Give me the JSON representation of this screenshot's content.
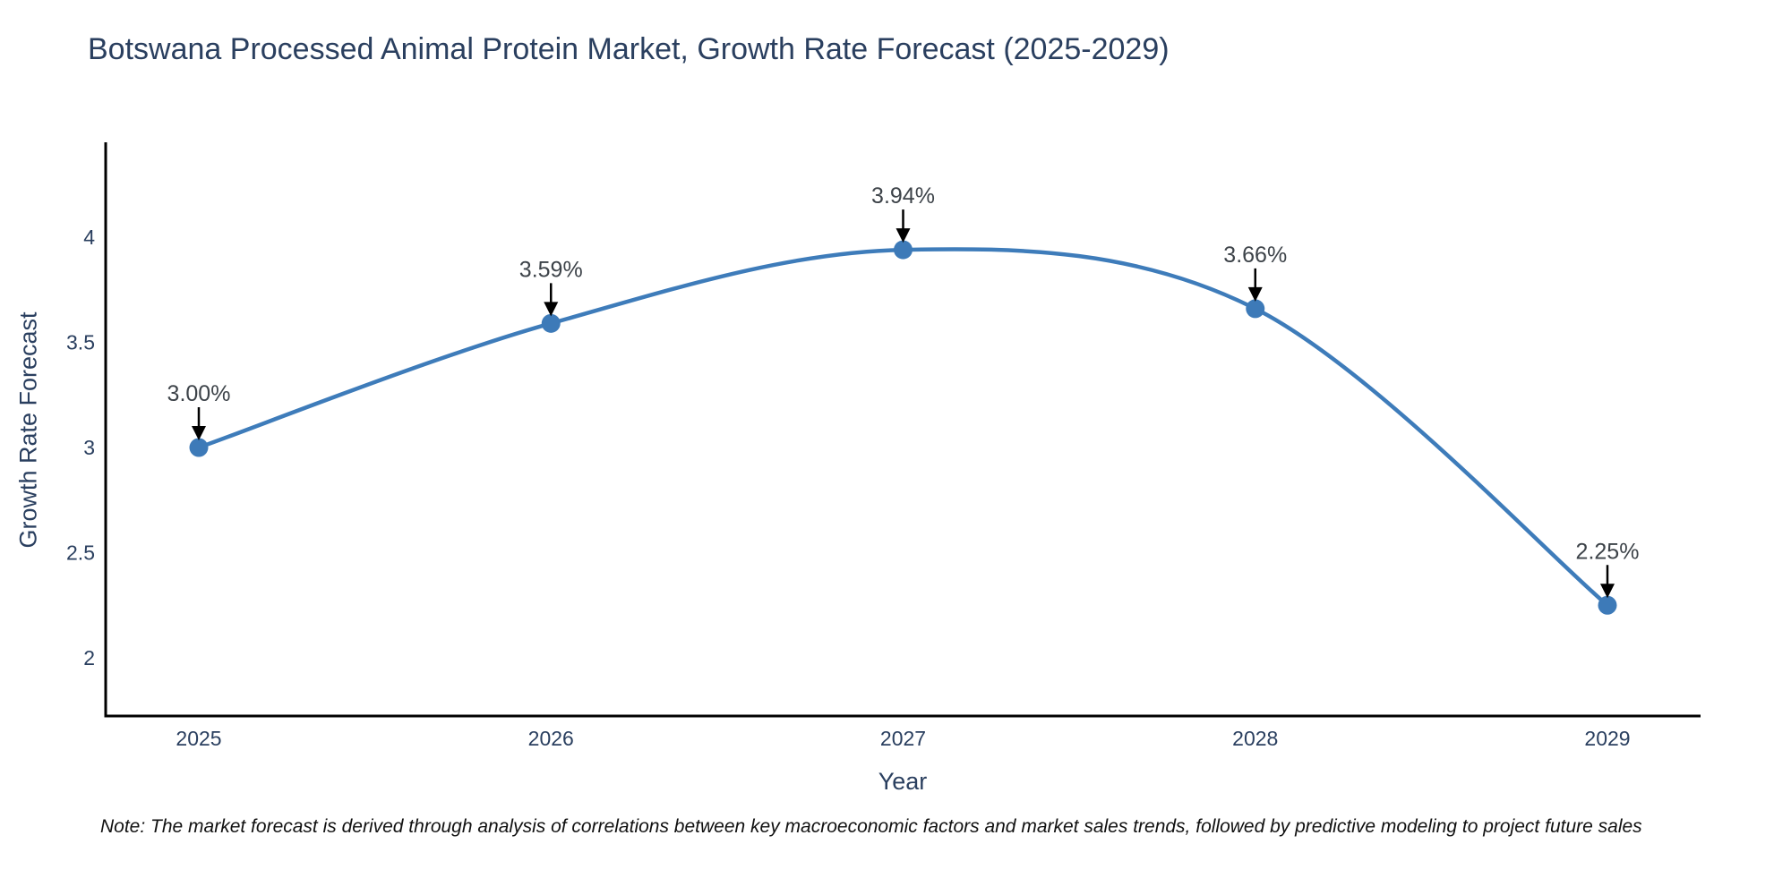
{
  "title": "Botswana Processed Animal Protein Market, Growth Rate Forecast (2025-2029)",
  "note": "Note: The market forecast is derived through analysis of correlations between key macroeconomic factors and market sales trends, followed by predictive modeling to project future sales",
  "chart_data": {
    "type": "line",
    "title": "Botswana Processed Animal Protein Market, Growth Rate Forecast (2025-2029)",
    "xlabel": "Year",
    "ylabel": "Growth Rate Forecast",
    "x": [
      2025,
      2026,
      2027,
      2028,
      2029
    ],
    "values": [
      3.0,
      3.59,
      3.94,
      3.66,
      2.25
    ],
    "point_labels": [
      "3.00%",
      "3.59%",
      "3.94%",
      "3.66%",
      "2.25%"
    ],
    "yticks": [
      2,
      2.5,
      3,
      3.5,
      4
    ],
    "xticks": [
      "2025",
      "2026",
      "2027",
      "2028",
      "2029"
    ],
    "ylim": [
      1.73,
      4.45
    ],
    "line_shape": "spline",
    "grid": false,
    "legend_position": "none",
    "colors": {
      "line": "#3e7cba",
      "marker": "#3d7ab8",
      "axis": "#000000",
      "tick_text": "#2a3f5f",
      "annotation_text": "#3d4349",
      "arrow": "#000000",
      "title_text": "#2a3f5f",
      "note_text": "#111111",
      "background": "#ffffff"
    }
  }
}
